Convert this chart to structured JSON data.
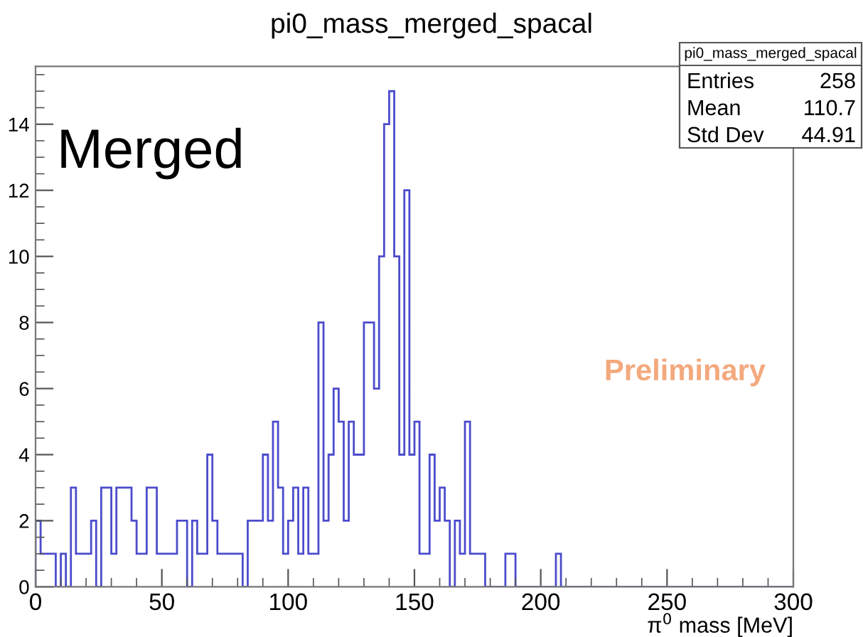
{
  "chart_data": {
    "type": "histogram",
    "title": "pi0_mass_merged_spacal",
    "xlabel": "π$^{0}$ mass [MeV]",
    "bins": [
      0,
      2,
      4,
      6,
      8,
      10,
      12,
      14,
      16,
      18,
      20,
      22,
      24,
      26,
      28,
      30,
      32,
      34,
      36,
      38,
      40,
      42,
      44,
      46,
      48,
      50,
      52,
      54,
      56,
      58,
      60,
      62,
      64,
      66,
      68,
      70,
      72,
      74,
      76,
      78,
      80,
      82,
      84,
      86,
      88,
      90,
      92,
      94,
      96,
      98,
      100,
      102,
      104,
      106,
      108,
      110,
      112,
      114,
      116,
      118,
      120,
      122,
      124,
      126,
      128,
      130,
      132,
      134,
      136,
      138,
      140,
      142,
      144,
      146,
      148,
      150,
      152,
      154,
      156,
      158,
      160,
      162,
      164,
      166,
      168,
      170,
      172,
      174,
      176,
      178,
      180,
      182,
      184,
      186,
      188,
      190,
      192,
      194,
      196,
      198,
      200,
      202,
      204,
      206,
      208,
      210,
      212,
      214,
      216,
      218,
      220,
      222,
      224,
      226,
      228,
      230,
      232,
      234,
      236,
      238,
      240,
      242,
      244,
      246,
      248,
      250,
      252,
      254,
      256,
      258,
      260,
      262,
      264,
      266,
      268,
      270,
      272,
      274,
      276,
      278,
      280,
      282,
      284,
      286,
      288,
      290,
      292,
      294,
      296,
      298,
      300
    ],
    "values": [
      2,
      1,
      1,
      1,
      0,
      1,
      0,
      3,
      1,
      1,
      1,
      2,
      0,
      3,
      3,
      1,
      3,
      3,
      3,
      2,
      1,
      1,
      3,
      3,
      1,
      1,
      1,
      1,
      2,
      2,
      0,
      2,
      1,
      1,
      4,
      2,
      1,
      1,
      1,
      1,
      1,
      0,
      2,
      2,
      2,
      4,
      2,
      5,
      3,
      1,
      2,
      3,
      1,
      3,
      1,
      1,
      8,
      2,
      4,
      6,
      5,
      2,
      5,
      4,
      4,
      8,
      8,
      6,
      10,
      14,
      15,
      10,
      4,
      12,
      4,
      5,
      1,
      1,
      4,
      2,
      3,
      2,
      0,
      2,
      1,
      5,
      1,
      1,
      1,
      0,
      0,
      0,
      0,
      1,
      1,
      0,
      0,
      0,
      0,
      0,
      0,
      0,
      0,
      1,
      0,
      0,
      0,
      0,
      0,
      0,
      0,
      0,
      0,
      0,
      0,
      0,
      0,
      0,
      0,
      0,
      0,
      0,
      0,
      0,
      0,
      0,
      0,
      0,
      0,
      0,
      0,
      0,
      0,
      0,
      0,
      0,
      0,
      0,
      0,
      0,
      0,
      0,
      0,
      0,
      0,
      0,
      0,
      0,
      0,
      0
    ],
    "color": "#4b4bcc",
    "xlim": [
      0,
      300
    ],
    "xticks": [
      0,
      50,
      100,
      150,
      200,
      250,
      300
    ],
    "ylim": [
      0,
      15.75
    ],
    "yticks": [
      0,
      2,
      4,
      6,
      8,
      10,
      12,
      14
    ],
    "grid": false,
    "annotations": [
      "Merged",
      "Preliminary",
      "pi0_mass_merged_spacal",
      "Entries",
      "258",
      "Mean",
      "110.7",
      "Std Dev",
      "44.91"
    ]
  }
}
